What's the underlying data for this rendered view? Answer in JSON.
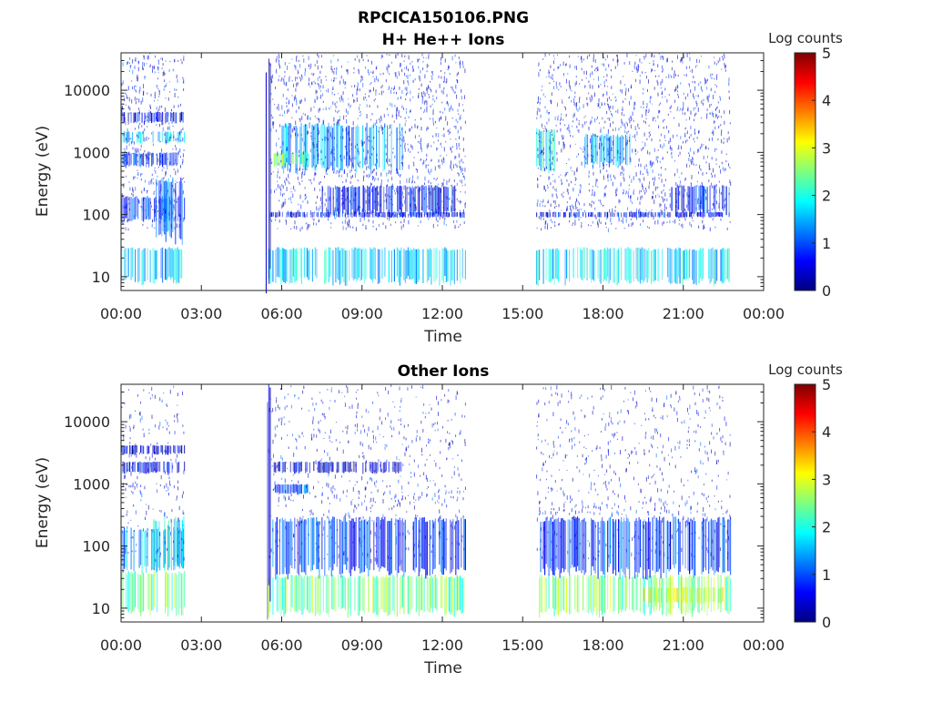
{
  "figure_title": "RPCICA150106.PNG",
  "colorbar_palette": [
    "#00007f",
    "#0000ff",
    "#007fff",
    "#00ffff",
    "#7fff7f",
    "#ffff00",
    "#ff7f00",
    "#ff0000",
    "#7f0000"
  ],
  "chart_data": [
    {
      "type": "heatmap",
      "title": "H+ He++ Ions",
      "xlabel": "Time",
      "ylabel": "Energy (eV)",
      "x_ticks": [
        "00:00",
        "03:00",
        "06:00",
        "09:00",
        "12:00",
        "15:00",
        "18:00",
        "21:00",
        "00:00"
      ],
      "x_range_hours": [
        0,
        24
      ],
      "y_scale": "log",
      "y_ticks": [
        10,
        100,
        1000,
        10000
      ],
      "y_tick_labels": [
        "10",
        "100",
        "1000",
        "10000"
      ],
      "y_range_ev": [
        6,
        40000
      ],
      "colorbar": {
        "label": "Log counts",
        "range": [
          0,
          5
        ],
        "ticks": [
          "0",
          "1",
          "2",
          "3",
          "4",
          "5"
        ]
      },
      "data_intervals_hours": [
        [
          0.0,
          2.35
        ],
        [
          5.5,
          12.85
        ],
        [
          15.5,
          22.75
        ]
      ],
      "features": [
        {
          "t_start": 0.0,
          "t_end": 2.35,
          "e_low": 8,
          "e_high": 30,
          "level": 1.6
        },
        {
          "t_start": 0.0,
          "t_end": 2.35,
          "e_low": 80,
          "e_high": 200,
          "level": 1.0
        },
        {
          "t_start": 1.3,
          "t_end": 2.3,
          "e_low": 40,
          "e_high": 400,
          "level": 1.2
        },
        {
          "t_start": 0.0,
          "t_end": 2.35,
          "e_low": 1400,
          "e_high": 2200,
          "level": 1.6
        },
        {
          "t_start": 0.0,
          "t_end": 2.35,
          "e_low": 3000,
          "e_high": 4500,
          "level": 0.6
        },
        {
          "t_start": 0.0,
          "t_end": 2.35,
          "e_low": 600,
          "e_high": 1000,
          "level": 0.7
        },
        {
          "t_start": 5.5,
          "t_end": 12.85,
          "e_low": 8,
          "e_high": 30,
          "level": 1.7
        },
        {
          "t_start": 5.55,
          "t_end": 12.85,
          "e_low": 90,
          "e_high": 110,
          "level": 0.7
        },
        {
          "t_start": 6.0,
          "t_end": 10.5,
          "e_low": 500,
          "e_high": 3000,
          "level": 1.4
        },
        {
          "t_start": 5.7,
          "t_end": 7.0,
          "e_low": 600,
          "e_high": 1000,
          "level": 2.4
        },
        {
          "t_start": 7.5,
          "t_end": 12.5,
          "e_low": 100,
          "e_high": 300,
          "level": 0.7
        },
        {
          "t_start": 15.5,
          "t_end": 22.75,
          "e_low": 8,
          "e_high": 30,
          "level": 1.7
        },
        {
          "t_start": 15.5,
          "t_end": 22.75,
          "e_low": 90,
          "e_high": 110,
          "level": 0.6
        },
        {
          "t_start": 15.5,
          "t_end": 16.2,
          "e_low": 500,
          "e_high": 2500,
          "level": 1.9
        },
        {
          "t_start": 17.3,
          "t_end": 19.0,
          "e_low": 600,
          "e_high": 2000,
          "level": 1.4
        },
        {
          "t_start": 20.5,
          "t_end": 22.75,
          "e_low": 100,
          "e_high": 300,
          "level": 0.8
        },
        {
          "t_start": 5.4,
          "t_end": 5.6,
          "e_low": 6,
          "e_high": 40000,
          "level": 0.3
        }
      ]
    },
    {
      "type": "heatmap",
      "title": "Other Ions",
      "xlabel": "Time",
      "ylabel": "Energy (eV)",
      "x_ticks": [
        "00:00",
        "03:00",
        "06:00",
        "09:00",
        "12:00",
        "15:00",
        "18:00",
        "21:00",
        "00:00"
      ],
      "x_range_hours": [
        0,
        24
      ],
      "y_scale": "log",
      "y_ticks": [
        10,
        100,
        1000,
        10000
      ],
      "y_tick_labels": [
        "10",
        "100",
        "1000",
        "10000"
      ],
      "y_range_ev": [
        6,
        40000
      ],
      "colorbar": {
        "label": "Log counts",
        "range": [
          0,
          5
        ],
        "ticks": [
          "0",
          "1",
          "2",
          "3",
          "4",
          "5"
        ]
      },
      "data_intervals_hours": [
        [
          0.0,
          2.35
        ],
        [
          5.5,
          12.85
        ],
        [
          15.5,
          22.75
        ]
      ],
      "features": [
        {
          "t_start": 0.0,
          "t_end": 2.35,
          "e_low": 8,
          "e_high": 40,
          "level": 2.3
        },
        {
          "t_start": 0.0,
          "t_end": 2.35,
          "e_low": 40,
          "e_high": 200,
          "level": 1.5
        },
        {
          "t_start": 1.2,
          "t_end": 2.35,
          "e_low": 40,
          "e_high": 300,
          "level": 1.8
        },
        {
          "t_start": 0.0,
          "t_end": 2.35,
          "e_low": 1500,
          "e_high": 2300,
          "level": 0.6
        },
        {
          "t_start": 0.0,
          "t_end": 2.35,
          "e_low": 3000,
          "e_high": 4200,
          "level": 0.4
        },
        {
          "t_start": 5.5,
          "t_end": 12.85,
          "e_low": 8,
          "e_high": 35,
          "level": 2.4
        },
        {
          "t_start": 5.6,
          "t_end": 12.85,
          "e_low": 35,
          "e_high": 300,
          "level": 0.9
        },
        {
          "t_start": 5.6,
          "t_end": 10.5,
          "e_low": 1500,
          "e_high": 2300,
          "level": 0.4
        },
        {
          "t_start": 5.7,
          "t_end": 7.0,
          "e_low": 700,
          "e_high": 1000,
          "level": 1.0
        },
        {
          "t_start": 15.5,
          "t_end": 22.75,
          "e_low": 8,
          "e_high": 35,
          "level": 2.5
        },
        {
          "t_start": 15.5,
          "t_end": 22.75,
          "e_low": 35,
          "e_high": 300,
          "level": 0.9
        },
        {
          "t_start": 19.5,
          "t_end": 22.5,
          "e_low": 12,
          "e_high": 22,
          "level": 2.9
        },
        {
          "t_start": 5.45,
          "t_end": 5.6,
          "e_low": 6,
          "e_high": 40000,
          "level": 0.3
        }
      ]
    }
  ]
}
